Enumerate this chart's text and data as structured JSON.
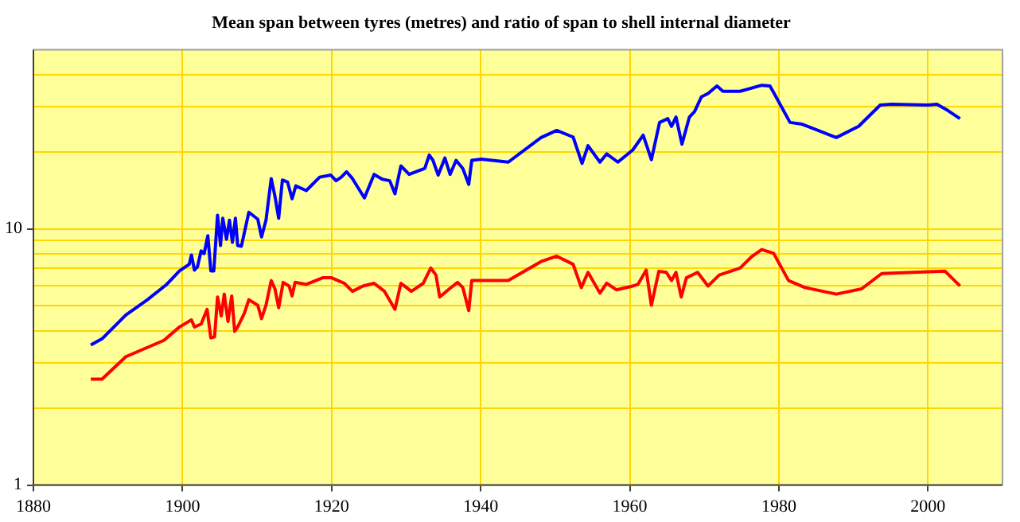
{
  "chart_data": {
    "type": "line",
    "title": "Mean span between tyres (metres) and ratio of span to shell internal diameter",
    "log": "y",
    "grid": true,
    "legend": false,
    "marker": "none",
    "line_style": "solid",
    "xlim": [
      1880,
      2010
    ],
    "xticks": [
      1880,
      1900,
      1920,
      1940,
      1960,
      1980,
      2000
    ],
    "ylim": [
      1,
      50
    ],
    "yticks": [
      1,
      {
        "value": 2,
        "label": null
      },
      {
        "value": 3,
        "label": null
      },
      {
        "value": 4,
        "label": null
      },
      {
        "value": 5,
        "label": null
      },
      {
        "value": 6,
        "label": null
      },
      {
        "value": 7,
        "label": null
      },
      {
        "value": 8,
        "label": null
      },
      {
        "value": 9,
        "label": null
      },
      10,
      {
        "value": 20,
        "label": null
      },
      {
        "value": 30,
        "label": null
      },
      {
        "value": 40,
        "label": null
      }
    ],
    "series": [
      {
        "color": "#0000ff",
        "x": [
          1887.7,
          1889.2,
          1892.4,
          1895.3,
          1897.8,
          1899.6,
          1900.9,
          1901.2,
          1901.6,
          1902.0,
          1902.5,
          1902.9,
          1903.4,
          1903.8,
          1904.2,
          1904.7,
          1905.1,
          1905.4,
          1905.9,
          1906.3,
          1906.7,
          1907.1,
          1907.4,
          1907.9,
          1908.9,
          1910.1,
          1910.6,
          1911.2,
          1911.9,
          1912.4,
          1912.9,
          1913.4,
          1914.1,
          1914.7,
          1915.2,
          1916.6,
          1918.4,
          1919.9,
          1920.6,
          1921.3,
          1922.0,
          1922.8,
          1924.4,
          1925.7,
          1926.8,
          1927.8,
          1928.5,
          1929.3,
          1930.4,
          1932.5,
          1933.1,
          1933.6,
          1934.3,
          1935.2,
          1935.9,
          1936.7,
          1937.6,
          1938.4,
          1938.8,
          1940.1,
          1943.7,
          1948.1,
          1950.2,
          1952.4,
          1953.6,
          1954.4,
          1956.0,
          1956.9,
          1958.4,
          1960.4,
          1961.8,
          1962.9,
          1964.0,
          1965.1,
          1965.6,
          1966.2,
          1967.0,
          1968.0,
          1968.7,
          1969.6,
          1970.5,
          1971.7,
          1972.5,
          1974.8,
          1977.7,
          1978.8,
          1979.3,
          1981.5,
          1983.1,
          1987.7,
          1990.7,
          1993.6,
          1995.1,
          2000.0,
          2001.2,
          2002.7,
          2004.3
        ],
        "values": [
          3.52,
          3.72,
          4.61,
          5.29,
          6.04,
          6.85,
          7.27,
          7.9,
          6.9,
          7.1,
          8.2,
          8.0,
          9.4,
          6.85,
          6.85,
          11.3,
          8.6,
          11.0,
          9.1,
          10.8,
          8.85,
          11.0,
          8.6,
          8.55,
          11.6,
          10.9,
          9.3,
          10.8,
          15.7,
          13.4,
          11.0,
          15.5,
          15.2,
          13.1,
          14.7,
          14.1,
          15.9,
          16.2,
          15.4,
          15.9,
          16.7,
          15.7,
          13.2,
          16.3,
          15.6,
          15.4,
          13.7,
          17.6,
          16.3,
          17.2,
          19.4,
          18.5,
          16.2,
          18.9,
          16.3,
          18.5,
          17.2,
          14.9,
          18.5,
          18.7,
          18.2,
          22.7,
          24.2,
          22.8,
          18.0,
          21.1,
          18.2,
          19.6,
          18.2,
          20.3,
          23.2,
          18.6,
          26.0,
          26.9,
          25.1,
          27.3,
          21.4,
          27.3,
          28.7,
          32.7,
          33.7,
          36.1,
          34.4,
          34.4,
          36.3,
          36.1,
          34.0,
          26.0,
          25.6,
          22.7,
          25.1,
          30.4,
          30.6,
          30.4,
          30.6,
          28.9,
          26.9
        ]
      },
      {
        "color": "#ff0000",
        "x": [
          1887.7,
          1889.2,
          1892.4,
          1897.5,
          1899.6,
          1901.2,
          1901.6,
          1902.5,
          1903.3,
          1903.8,
          1904.3,
          1904.7,
          1905.2,
          1905.6,
          1906.1,
          1906.6,
          1907.0,
          1907.4,
          1908.3,
          1908.9,
          1910.1,
          1910.6,
          1911.2,
          1911.9,
          1912.4,
          1912.9,
          1913.5,
          1914.3,
          1914.7,
          1915.1,
          1916.6,
          1918.8,
          1920.0,
          1921.7,
          1922.8,
          1924.2,
          1925.7,
          1927.1,
          1928.5,
          1929.3,
          1930.7,
          1932.3,
          1933.3,
          1934.0,
          1934.5,
          1935.8,
          1936.9,
          1937.6,
          1938.4,
          1938.8,
          1940.1,
          1943.7,
          1948.1,
          1950.2,
          1952.4,
          1953.5,
          1954.4,
          1956.0,
          1956.9,
          1958.2,
          1960.4,
          1961.1,
          1962.2,
          1962.9,
          1963.9,
          1964.9,
          1965.6,
          1966.2,
          1966.9,
          1967.6,
          1969.1,
          1970.5,
          1972.0,
          1974.8,
          1976.3,
          1977.7,
          1979.3,
          1981.3,
          1983.5,
          1987.7,
          1991.1,
          1993.8,
          2002.3,
          2004.3
        ],
        "values": [
          2.59,
          2.59,
          3.17,
          3.67,
          4.14,
          4.41,
          4.14,
          4.25,
          4.85,
          3.75,
          3.79,
          5.42,
          4.57,
          5.56,
          4.35,
          5.47,
          3.98,
          4.14,
          4.68,
          5.29,
          5.03,
          4.46,
          5.03,
          6.28,
          5.83,
          4.92,
          6.18,
          5.98,
          5.47,
          6.18,
          6.07,
          6.44,
          6.44,
          6.13,
          5.7,
          5.98,
          6.13,
          5.7,
          4.85,
          6.13,
          5.7,
          6.13,
          7.03,
          6.6,
          5.42,
          5.83,
          6.18,
          5.9,
          4.8,
          6.28,
          6.28,
          6.28,
          7.45,
          7.82,
          7.27,
          5.9,
          6.76,
          5.61,
          6.13,
          5.78,
          5.98,
          6.07,
          6.9,
          5.03,
          6.83,
          6.76,
          6.28,
          6.76,
          5.42,
          6.44,
          6.76,
          5.98,
          6.6,
          7.03,
          7.76,
          8.3,
          8.02,
          6.28,
          5.9,
          5.56,
          5.83,
          6.69,
          6.83,
          5.98
        ]
      }
    ]
  }
}
